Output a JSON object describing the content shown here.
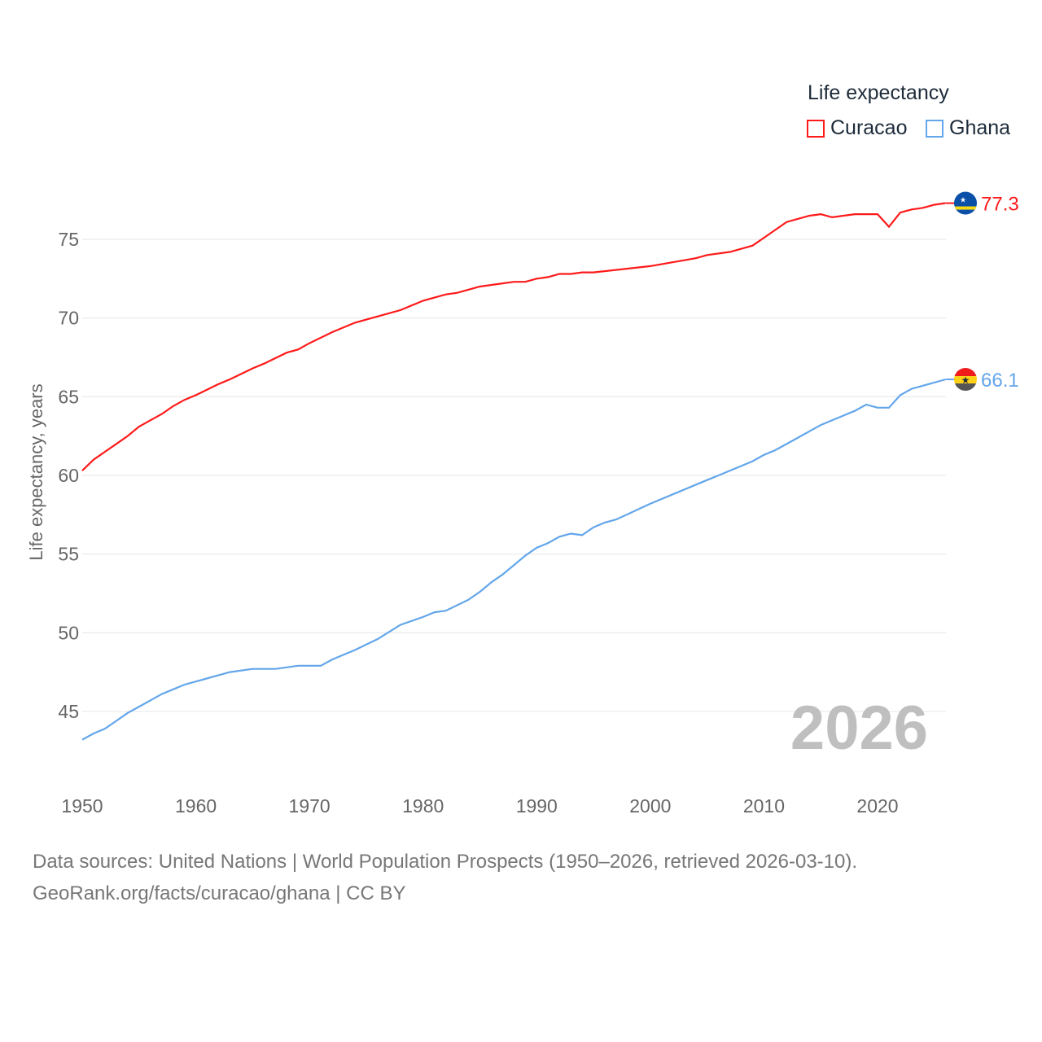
{
  "chart_data": {
    "type": "line",
    "title": "Life expectancy",
    "ylabel": "Life expectancy, years",
    "xlabel": "",
    "xlim": [
      1950,
      2026
    ],
    "ylim": [
      41,
      79
    ],
    "xticks": [
      1950,
      1960,
      1970,
      1980,
      1990,
      2000,
      2010,
      2020
    ],
    "yticks": [
      45,
      50,
      55,
      60,
      65,
      70,
      75
    ],
    "grid": true,
    "legend_placement": "top-right",
    "watermark_year": "2026",
    "series": [
      {
        "name": "Curacao",
        "color": "#ff1a1a",
        "end_label": "77.3",
        "x": [
          1950,
          1951,
          1952,
          1953,
          1954,
          1955,
          1956,
          1957,
          1958,
          1959,
          1960,
          1962,
          1963,
          1965,
          1966,
          1968,
          1969,
          1970,
          1972,
          1974,
          1976,
          1978,
          1980,
          1982,
          1983,
          1985,
          1987,
          1988,
          1989,
          1990,
          1991,
          1992,
          1993,
          1994,
          1995,
          2000,
          2004,
          2005,
          2007,
          2009,
          2010,
          2011,
          2012,
          2014,
          2015,
          2016,
          2018,
          2020,
          2021,
          2022,
          2023,
          2024,
          2025,
          2026
        ],
        "y": [
          60.3,
          61.0,
          61.5,
          62.0,
          62.5,
          63.1,
          63.5,
          63.9,
          64.4,
          64.8,
          65.1,
          65.8,
          66.1,
          66.8,
          67.1,
          67.8,
          68.0,
          68.4,
          69.1,
          69.7,
          70.1,
          70.5,
          71.1,
          71.5,
          71.6,
          72.0,
          72.2,
          72.3,
          72.3,
          72.5,
          72.6,
          72.8,
          72.8,
          72.9,
          72.9,
          73.3,
          73.8,
          74.0,
          74.2,
          74.6,
          75.1,
          75.6,
          76.1,
          76.5,
          76.6,
          76.4,
          76.6,
          76.6,
          75.8,
          76.7,
          76.9,
          77.0,
          77.2,
          77.3
        ]
      },
      {
        "name": "Ghana",
        "color": "#63a6ea",
        "end_label": "66.1",
        "x": [
          1950,
          1951,
          1952,
          1953,
          1954,
          1955,
          1956,
          1957,
          1958,
          1959,
          1960,
          1962,
          1963,
          1965,
          1967,
          1969,
          1971,
          1972,
          1974,
          1976,
          1978,
          1980,
          1981,
          1982,
          1984,
          1985,
          1986,
          1987,
          1988,
          1989,
          1990,
          1991,
          1992,
          1993,
          1994,
          1995,
          1996,
          1997,
          2000,
          2005,
          2006,
          2009,
          2010,
          2011,
          2013,
          2015,
          2017,
          2018,
          2019,
          2020,
          2021,
          2022,
          2023,
          2024,
          2026
        ],
        "y": [
          43.2,
          43.6,
          43.9,
          44.4,
          44.9,
          45.3,
          45.7,
          46.1,
          46.4,
          46.7,
          46.9,
          47.3,
          47.5,
          47.7,
          47.7,
          47.9,
          47.9,
          48.3,
          48.9,
          49.6,
          50.5,
          51.0,
          51.3,
          51.4,
          52.1,
          52.6,
          53.2,
          53.7,
          54.3,
          54.9,
          55.4,
          55.7,
          56.1,
          56.3,
          56.2,
          56.7,
          57.0,
          57.2,
          58.2,
          59.7,
          60.0,
          60.9,
          61.3,
          61.6,
          62.4,
          63.2,
          63.8,
          64.1,
          64.5,
          64.3,
          64.3,
          65.1,
          65.5,
          65.7,
          66.1
        ]
      }
    ]
  },
  "legend": {
    "title": "Life expectancy",
    "items": [
      "Curacao",
      "Ghana"
    ]
  },
  "footer": {
    "line1": "Data sources: United Nations | World Population Prospects (1950–2026, retrieved 2026-03-10).",
    "line2": "GeoRank.org/facts/curacao/ghana | CC BY"
  }
}
